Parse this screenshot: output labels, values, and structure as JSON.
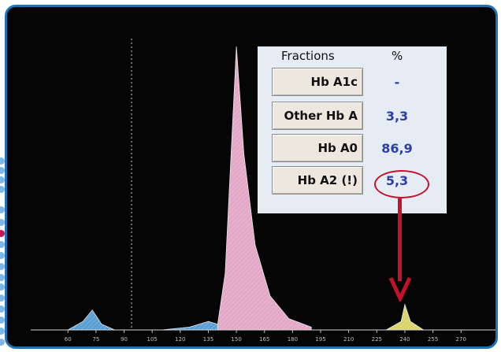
{
  "panel": {
    "header_fractions": "Fractions",
    "header_percent": "%",
    "rows": [
      {
        "name": "Hb A1c",
        "value": "-"
      },
      {
        "name": "Other Hb A",
        "value": "3,3"
      },
      {
        "name": "Hb A0",
        "value": "86,9"
      },
      {
        "name": "Hb A2 (!)",
        "value": "5,3"
      }
    ]
  },
  "chart_data": {
    "type": "area",
    "title": "",
    "xlabel": "",
    "ylabel": "",
    "x_ticks": [
      "60",
      "75",
      "90",
      "105",
      "120",
      "135",
      "150",
      "165",
      "180",
      "195",
      "210",
      "225",
      "240",
      "255",
      "270"
    ],
    "xlim": [
      46,
      280
    ],
    "series": [
      {
        "values": [
          [
            60,
            0
          ],
          [
            68,
            3
          ],
          [
            73,
            7
          ],
          [
            78,
            2
          ],
          [
            85,
            0
          ],
          [
            110,
            0
          ],
          [
            125,
            1
          ],
          [
            135,
            3
          ],
          [
            140,
            2
          ],
          [
            144,
            20
          ],
          [
            147,
            60
          ],
          [
            150,
            100
          ],
          [
            154,
            62
          ],
          [
            160,
            30
          ],
          [
            168,
            12
          ],
          [
            178,
            4
          ],
          [
            190,
            1
          ],
          [
            230,
            0
          ],
          [
            238,
            3
          ],
          [
            240,
            9
          ],
          [
            243,
            3
          ],
          [
            250,
            0
          ],
          [
            280,
            0
          ]
        ]
      }
    ],
    "marker_line_x": 94,
    "colors": {
      "background": "#050505",
      "peak_low": "#5a9fd4",
      "peak_main": "#e3a7c8",
      "peak_a2": "#d9d36a",
      "baseline": "#cfd6dc",
      "annotation": "#c4122a"
    },
    "grid": false
  }
}
